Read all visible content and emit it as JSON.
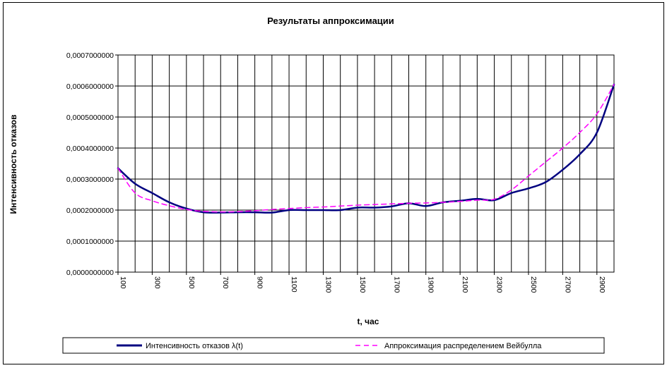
{
  "chart_data": {
    "type": "line",
    "title": "Результаты аппроксимации",
    "xlabel": "t, час",
    "ylabel": "Интенсивность отказов",
    "xlim": [
      100,
      3000
    ],
    "ylim": [
      0,
      0.0007
    ],
    "x_tick_labels": [
      "100",
      "300",
      "500",
      "700",
      "900",
      "1100",
      "1300",
      "1500",
      "1700",
      "1900",
      "2100",
      "2300",
      "2500",
      "2700",
      "2900"
    ],
    "y_tick_labels": [
      "0,0000000000",
      "0,0001000000",
      "0,0002000000",
      "0,0003000000",
      "0,0004000000",
      "0,0005000000",
      "0,0006000000",
      "0,0007000000"
    ],
    "grid": true,
    "legend_position": "bottom",
    "series": [
      {
        "name": "Интенсивность отказов λ(t)",
        "color": "#000080",
        "style": "solid",
        "x": [
          100,
          200,
          300,
          400,
          500,
          600,
          700,
          800,
          900,
          1000,
          1100,
          1200,
          1300,
          1400,
          1500,
          1600,
          1700,
          1800,
          1900,
          2000,
          2100,
          2200,
          2300,
          2400,
          2500,
          2600,
          2700,
          2800,
          2900,
          3000
        ],
        "y": [
          0.000335,
          0.000285,
          0.000255,
          0.000225,
          0.000205,
          0.000193,
          0.000192,
          0.000193,
          0.000193,
          0.000192,
          0.0002,
          0.0002,
          0.0002,
          0.0002,
          0.000208,
          0.000208,
          0.000212,
          0.000222,
          0.000213,
          0.000225,
          0.00023,
          0.000236,
          0.000232,
          0.000255,
          0.00027,
          0.00029,
          0.00033,
          0.00038,
          0.00045,
          0.000605
        ]
      },
      {
        "name": "Аппроксимация распределением Вейбулла",
        "color": "#ff00ff",
        "style": "dashed",
        "x": [
          100,
          200,
          300,
          400,
          500,
          600,
          700,
          800,
          900,
          1000,
          1100,
          1200,
          1300,
          1400,
          1500,
          1600,
          1700,
          1800,
          1900,
          2000,
          2100,
          2200,
          2300,
          2400,
          2500,
          2600,
          2700,
          2800,
          2900,
          3000
        ],
        "y": [
          0.000335,
          0.000255,
          0.00023,
          0.000214,
          0.000202,
          0.000196,
          0.000194,
          0.000195,
          0.000198,
          0.000202,
          0.000205,
          0.000208,
          0.00021,
          0.000213,
          0.000216,
          0.000218,
          0.00022,
          0.000222,
          0.000223,
          0.000225,
          0.000228,
          0.000232,
          0.000235,
          0.000265,
          0.00031,
          0.000355,
          0.0004,
          0.00045,
          0.00051,
          0.000605
        ]
      }
    ]
  }
}
